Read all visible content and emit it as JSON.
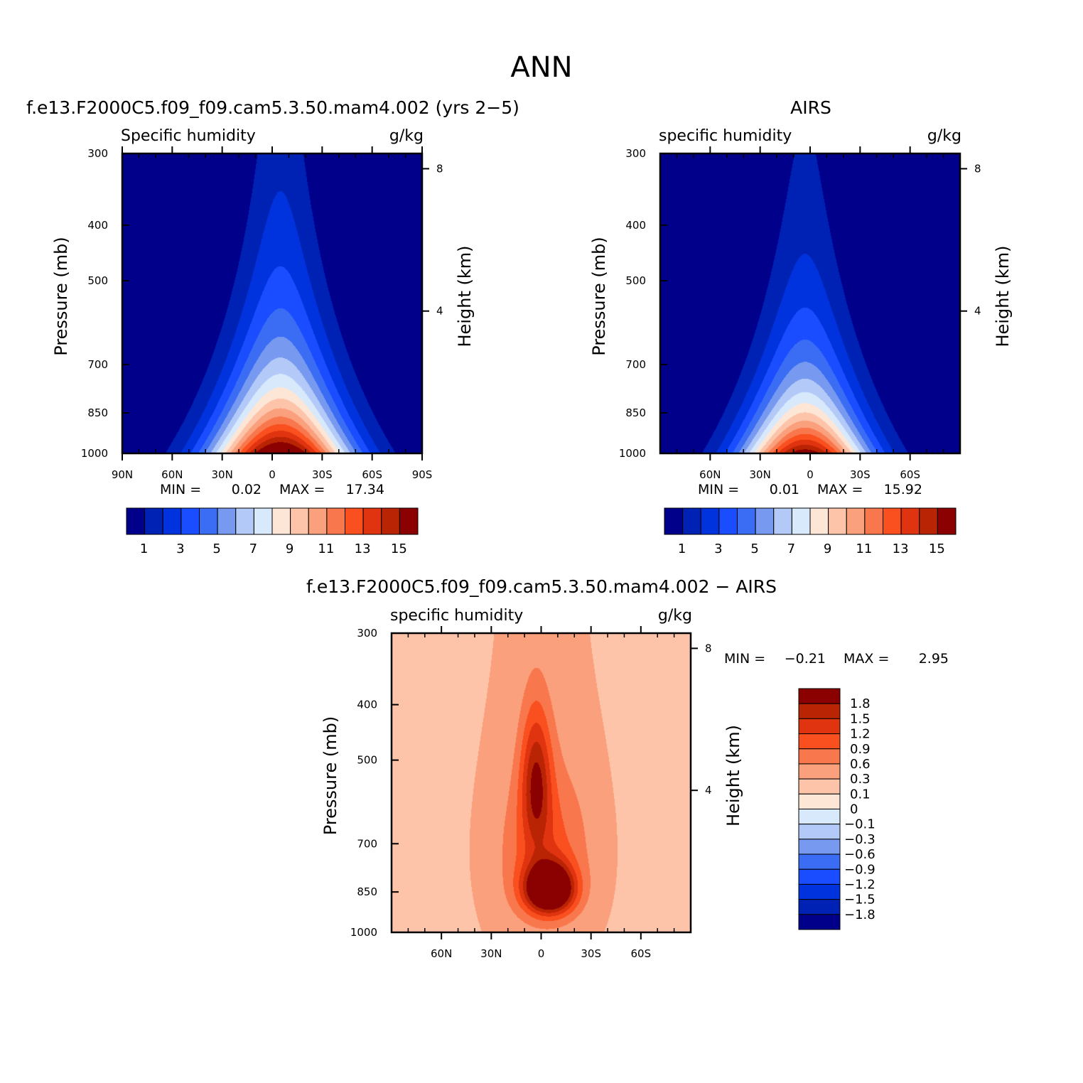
{
  "figure": {
    "title": "ANN"
  },
  "chart_data": [
    {
      "type": "contour",
      "title": "f.e13.F2000C5.f09_f09.cam5.3.50.mam4.002 (yrs 2−5)",
      "subtitle_left": "Specific humidity",
      "subtitle_right": "g/kg",
      "ylabel": "Pressure (mb)",
      "ylabel_right": "Height (km)",
      "y_ticks": [
        "300",
        "400",
        "500",
        "700",
        "850",
        "1000"
      ],
      "y_tick_values": [
        300,
        400,
        500,
        700,
        850,
        1000
      ],
      "y_right_ticks": [
        "8",
        "4"
      ],
      "y_right_tick_values": [
        8,
        4
      ],
      "x_ticks": [
        "90N",
        "60N",
        "30N",
        "0",
        "30S",
        "60S",
        "90S"
      ],
      "x_tick_values": [
        90,
        60,
        30,
        0,
        -30,
        -60,
        -90
      ],
      "xlim": [
        90,
        -90
      ],
      "ylim": [
        300,
        1000
      ],
      "stats": {
        "min_label": "MIN =",
        "min": "0.02",
        "max_label": "MAX =",
        "max": "17.34"
      },
      "colorbar": {
        "orientation": "horizontal",
        "labels": [
          "1",
          "3",
          "5",
          "7",
          "9",
          "11",
          "13",
          "15"
        ],
        "colors": [
          "#00008b",
          "#0022b4",
          "#0033dd",
          "#1a4dff",
          "#3a6cf4",
          "#7799f0",
          "#b3caf8",
          "#d8e9fc",
          "#fde6d6",
          "#fdc4aa",
          "#fba07c",
          "#f9774c",
          "#fa4f1e",
          "#e0330f",
          "#b92404",
          "#8b0000"
        ]
      },
      "field": {
        "peak_lat": -5,
        "peak_value": 17.34,
        "e_fold_pressure_mb": 300,
        "meridional_scale_deg": 34,
        "base_value": 0.02
      }
    },
    {
      "type": "contour",
      "title": "AIRS",
      "subtitle_left": "specific humidity",
      "subtitle_right": "g/kg",
      "ylabel": "Pressure (mb)",
      "ylabel_right": "Height (km)",
      "y_ticks": [
        "300",
        "400",
        "500",
        "700",
        "850",
        "1000"
      ],
      "y_tick_values": [
        300,
        400,
        500,
        700,
        850,
        1000
      ],
      "y_right_ticks": [
        "8",
        "4"
      ],
      "y_right_tick_values": [
        8,
        4
      ],
      "x_ticks": [
        "60N",
        "30N",
        "0",
        "30S",
        "60S"
      ],
      "x_tick_values": [
        60,
        30,
        0,
        -30,
        -60
      ],
      "xlim": [
        90,
        -90
      ],
      "ylim": [
        300,
        1000
      ],
      "stats": {
        "min_label": "MIN =",
        "min": "0.01",
        "max_label": "MAX =",
        "max": "15.92"
      },
      "colorbar": {
        "orientation": "horizontal",
        "labels": [
          "1",
          "3",
          "5",
          "7",
          "9",
          "11",
          "13",
          "15"
        ],
        "colors": [
          "#00008b",
          "#0022b4",
          "#0033dd",
          "#1a4dff",
          "#3a6cf4",
          "#7799f0",
          "#b3caf8",
          "#d8e9fc",
          "#fde6d6",
          "#fdc4aa",
          "#fba07c",
          "#f9774c",
          "#fa4f1e",
          "#e0330f",
          "#b92404",
          "#8b0000"
        ]
      },
      "field": {
        "peak_lat": 3,
        "peak_value": 15.92,
        "e_fold_pressure_mb": 265,
        "meridional_scale_deg": 31,
        "base_value": 0.01
      }
    },
    {
      "type": "contour",
      "title": "f.e13.F2000C5.f09_f09.cam5.3.50.mam4.002 − AIRS",
      "subtitle_left": "specific humidity",
      "subtitle_right": "g/kg",
      "ylabel": "Pressure (mb)",
      "ylabel_right": "Height (km)",
      "y_ticks": [
        "300",
        "400",
        "500",
        "700",
        "850",
        "1000"
      ],
      "y_tick_values": [
        300,
        400,
        500,
        700,
        850,
        1000
      ],
      "y_right_ticks": [
        "8",
        "4"
      ],
      "y_right_tick_values": [
        8,
        4
      ],
      "x_ticks": [
        "60N",
        "30N",
        "0",
        "30S",
        "60S"
      ],
      "x_tick_values": [
        60,
        30,
        0,
        -30,
        -60
      ],
      "xlim": [
        90,
        -90
      ],
      "ylim": [
        300,
        1000
      ],
      "stats": {
        "min_label": "MIN =",
        "min": "−0.21",
        "max_label": "MAX =",
        "max": "2.95"
      },
      "colorbar": {
        "orientation": "vertical",
        "labels": [
          "1.8",
          "1.5",
          "1.2",
          "0.9",
          "0.6",
          "0.3",
          "0.1",
          "0",
          "−0.1",
          "−0.3",
          "−0.6",
          "−0.9",
          "−1.2",
          "−1.5",
          "−1.8"
        ],
        "levels": [
          1.8,
          1.5,
          1.2,
          0.9,
          0.6,
          0.3,
          0.1,
          0,
          -0.1,
          -0.3,
          -0.6,
          -0.9,
          -1.2,
          -1.5,
          -1.8
        ],
        "colors": [
          "#8b0000",
          "#b92404",
          "#e0330f",
          "#fa4f1e",
          "#f9774c",
          "#fba07c",
          "#fdc4aa",
          "#fde6d6",
          "#d8e9fc",
          "#b3caf8",
          "#7799f0",
          "#3a6cf4",
          "#1a4dff",
          "#0033dd",
          "#0022b4",
          "#00008b"
        ]
      },
      "field": {
        "peak_lat": -5,
        "peak_pressure_mb": 840,
        "peak_value": 2.95,
        "min_value": -0.21
      }
    }
  ]
}
